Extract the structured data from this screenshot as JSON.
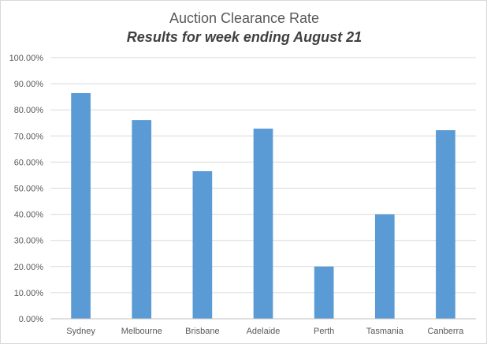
{
  "chart_data": {
    "type": "bar",
    "title": "Auction Clearance Rate",
    "subtitle": "Results for week ending August 21",
    "xlabel": "",
    "ylabel": "",
    "categories": [
      "Sydney",
      "Melbourne",
      "Brisbane",
      "Adelaide",
      "Perth",
      "Tasmania",
      "Canberra"
    ],
    "values": [
      86.4,
      76.1,
      56.5,
      72.8,
      20.0,
      40.0,
      72.2
    ],
    "ylim": [
      0,
      100
    ],
    "yticks": [
      "0.00%",
      "10.00%",
      "20.00%",
      "30.00%",
      "40.00%",
      "50.00%",
      "60.00%",
      "70.00%",
      "80.00%",
      "90.00%",
      "100.00%"
    ],
    "grid": true,
    "legend": "none",
    "bar_color": "#5b9bd5"
  }
}
